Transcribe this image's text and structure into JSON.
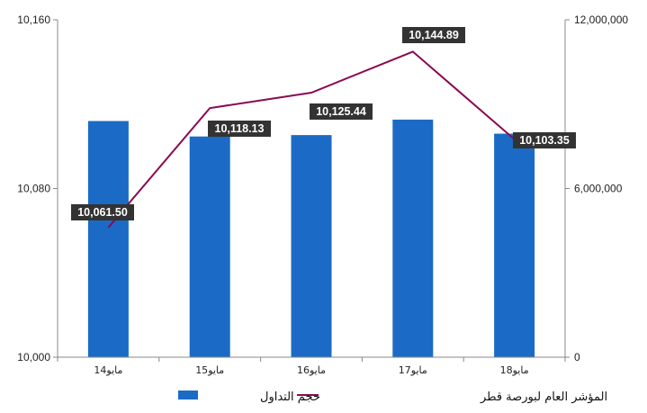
{
  "chart_data": {
    "type": "bar",
    "categories": [
      "مايو14",
      "مايو15",
      "مايو16",
      "مايو17",
      "مايو18"
    ],
    "series": [
      {
        "name": "حجم التداول",
        "kind": "bar",
        "axis": "right",
        "color": "#1B6BC6",
        "values": [
          8400000,
          7850000,
          7900000,
          8450000,
          7950000
        ]
      },
      {
        "name": "المؤشر العام لبورصة قطر",
        "kind": "line",
        "axis": "left",
        "color": "#8B0A50",
        "values": [
          10061.5,
          10118.13,
          10125.44,
          10144.89,
          10103.35
        ],
        "labels": [
          "10,061.50",
          "10,118.13",
          "10,125.44",
          "10,144.89",
          "10,103.35"
        ]
      }
    ],
    "y_left": {
      "lim": [
        10000,
        10160
      ],
      "ticks": [
        10000,
        10080,
        10160
      ],
      "tick_labels": [
        "10,000",
        "10,080",
        "10,160"
      ]
    },
    "y_right": {
      "lim": [
        0,
        12000000
      ],
      "ticks": [
        0,
        6000000,
        12000000
      ],
      "tick_labels": [
        "0",
        "6,000,000",
        "12,000,000"
      ]
    },
    "grid": false,
    "legend_position": "bottom",
    "label_box_color": "#333333"
  }
}
